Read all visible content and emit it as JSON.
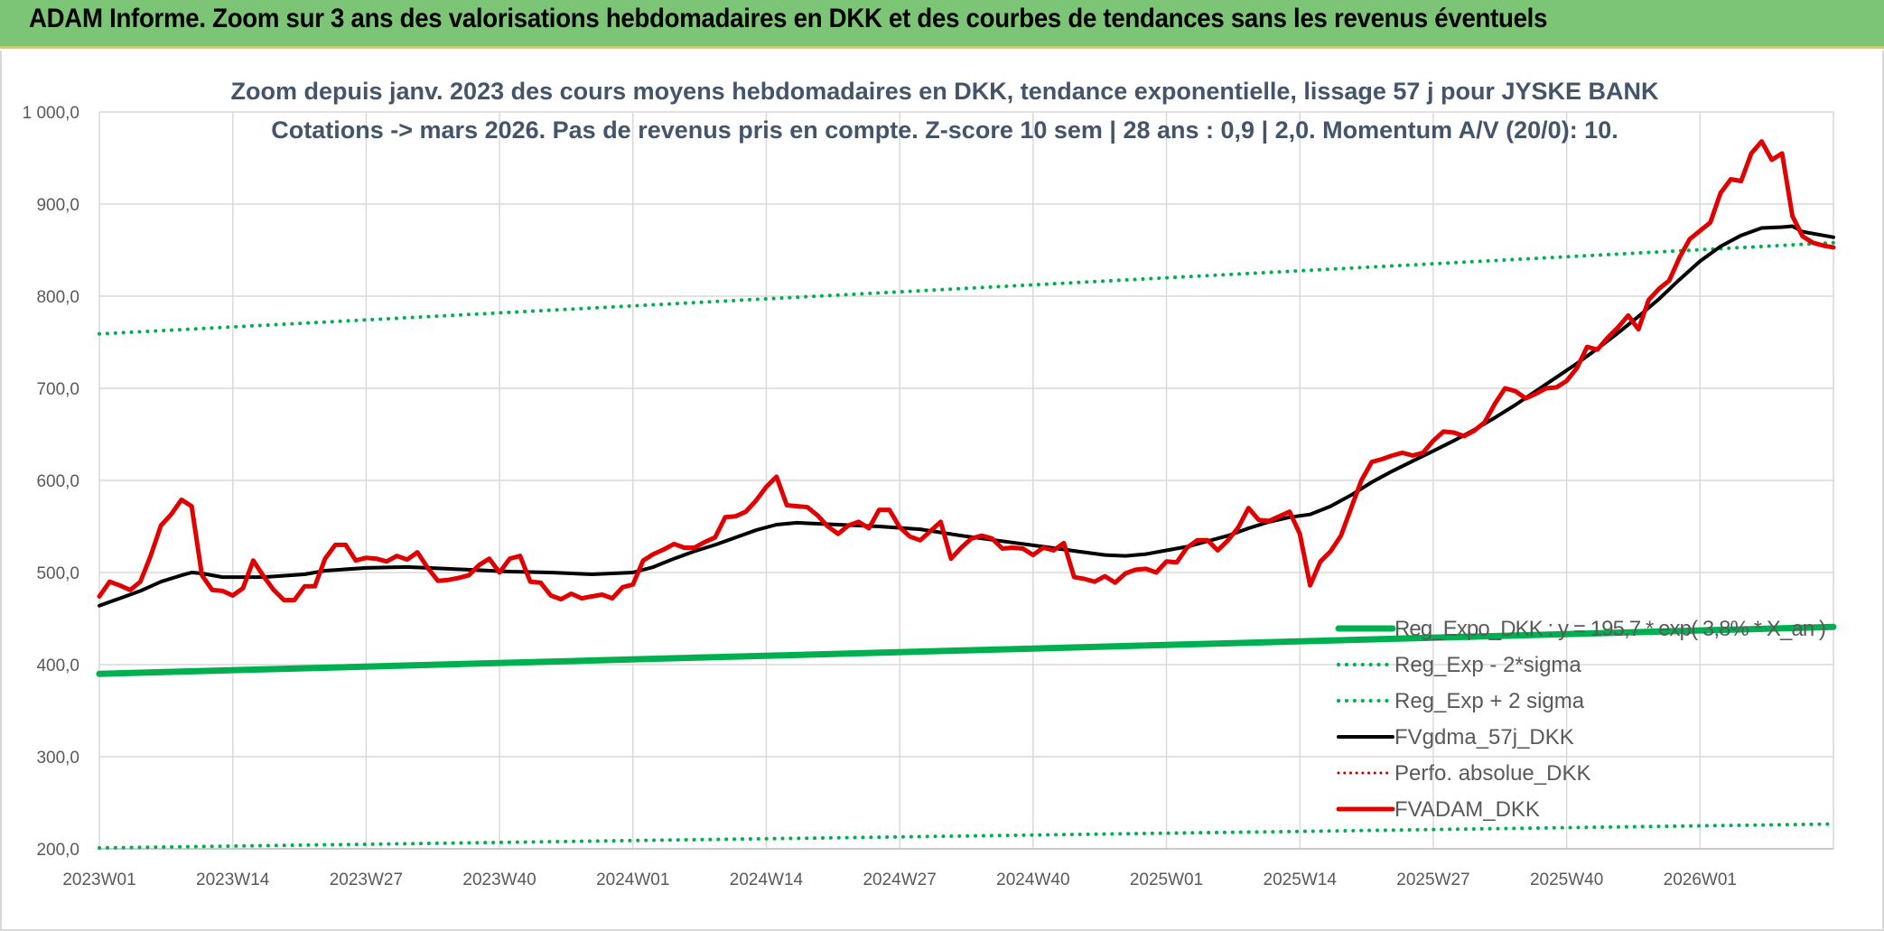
{
  "banner": {
    "title": "ADAM Informe. Zoom sur 3 ans des valorisations hebdomadaires en DKK et des courbes de tendances sans les revenus éventuels"
  },
  "chart_data": {
    "type": "line",
    "title_lines": [
      "Zoom depuis janv. 2023 des cours moyens hebdomadaires en DKK, tendance exponentielle, lissage 57 j pour JYSKE BANK",
      "Cotations -> mars 2026. Pas de revenus pris en compte. Z-score 10 sem | 28 ans : 0,9 | 2,0. Momentum A/V (20/0): 10."
    ],
    "ylim": [
      200,
      1000
    ],
    "yticks": [
      "200,0",
      "300,0",
      "400,0",
      "500,0",
      "600,0",
      "700,0",
      "800,0",
      "900,0",
      "1 000,0"
    ],
    "ytick_values": [
      200,
      300,
      400,
      500,
      600,
      700,
      800,
      900,
      1000
    ],
    "xticks": [
      {
        "label": "2023W01",
        "week": 0
      },
      {
        "label": "2023W14",
        "week": 13
      },
      {
        "label": "2023W27",
        "week": 26
      },
      {
        "label": "2023W40",
        "week": 39
      },
      {
        "label": "2024W01",
        "week": 52
      },
      {
        "label": "2024W14",
        "week": 65
      },
      {
        "label": "2024W27",
        "week": 78
      },
      {
        "label": "2024W40",
        "week": 91
      },
      {
        "label": "2025W01",
        "week": 104
      },
      {
        "label": "2025W14",
        "week": 117
      },
      {
        "label": "2025W27",
        "week": 130
      },
      {
        "label": "2025W40",
        "week": 143
      },
      {
        "label": "2026W01",
        "week": 156
      }
    ],
    "x_range_weeks": [
      0,
      169
    ],
    "grid": true,
    "legend_position": "bottom-right",
    "series": [
      {
        "name": "Reg_Expo_DKK : y = 195,7 * exp( 3,8% * X_an )",
        "style": "solid",
        "color": "#00b050",
        "width": 7,
        "points": [
          [
            0,
            390
          ],
          [
            169,
            441
          ]
        ]
      },
      {
        "name": "Reg_Exp - 2*sigma",
        "style": "dotted",
        "color": "#00b050",
        "width": 4,
        "points": [
          [
            0,
            201
          ],
          [
            169,
            227
          ]
        ]
      },
      {
        "name": "Reg_Exp + 2 sigma",
        "style": "dotted",
        "color": "#00b050",
        "width": 4,
        "points": [
          [
            0,
            759
          ],
          [
            169,
            858
          ]
        ]
      },
      {
        "name": "FVgdma_57j_DKK",
        "style": "solid",
        "color": "#000000",
        "width": 4,
        "points": [
          [
            0,
            464
          ],
          [
            2,
            472
          ],
          [
            4,
            480
          ],
          [
            6,
            490
          ],
          [
            8,
            497
          ],
          [
            9,
            500
          ],
          [
            10,
            499
          ],
          [
            12,
            495
          ],
          [
            16,
            495
          ],
          [
            20,
            498
          ],
          [
            22,
            502
          ],
          [
            26,
            505
          ],
          [
            30,
            506
          ],
          [
            34,
            504
          ],
          [
            40,
            501
          ],
          [
            44,
            500
          ],
          [
            48,
            498
          ],
          [
            50,
            499
          ],
          [
            52,
            500
          ],
          [
            54,
            506
          ],
          [
            56,
            515
          ],
          [
            58,
            523
          ],
          [
            60,
            530
          ],
          [
            62,
            538
          ],
          [
            64,
            546
          ],
          [
            66,
            552
          ],
          [
            68,
            554
          ],
          [
            72,
            552
          ],
          [
            76,
            550
          ],
          [
            80,
            547
          ],
          [
            84,
            540
          ],
          [
            88,
            534
          ],
          [
            92,
            528
          ],
          [
            96,
            522
          ],
          [
            98,
            519
          ],
          [
            100,
            518
          ],
          [
            102,
            520
          ],
          [
            104,
            524
          ],
          [
            106,
            528
          ],
          [
            108,
            534
          ],
          [
            110,
            540
          ],
          [
            112,
            548
          ],
          [
            114,
            555
          ],
          [
            116,
            560
          ],
          [
            118,
            563
          ],
          [
            120,
            572
          ],
          [
            122,
            584
          ],
          [
            124,
            598
          ],
          [
            126,
            610
          ],
          [
            128,
            621
          ],
          [
            130,
            632
          ],
          [
            132,
            643
          ],
          [
            134,
            655
          ],
          [
            136,
            668
          ],
          [
            138,
            682
          ],
          [
            140,
            697
          ],
          [
            142,
            712
          ],
          [
            144,
            727
          ],
          [
            146,
            743
          ],
          [
            148,
            760
          ],
          [
            150,
            778
          ],
          [
            152,
            797
          ],
          [
            154,
            818
          ],
          [
            156,
            838
          ],
          [
            158,
            854
          ],
          [
            160,
            866
          ],
          [
            162,
            874
          ],
          [
            164,
            875
          ],
          [
            165,
            876
          ],
          [
            166,
            870
          ],
          [
            168,
            866
          ],
          [
            169,
            864
          ]
        ]
      },
      {
        "name": "Perfo. absolue_DKK",
        "style": "dotted",
        "color": "#c00000",
        "width": 3,
        "points": []
      },
      {
        "name": "FVADAM_DKK",
        "style": "solid",
        "color": "#e00000",
        "width": 5,
        "points": [
          [
            0,
            474
          ],
          [
            1,
            490
          ],
          [
            2,
            486
          ],
          [
            3,
            481
          ],
          [
            4,
            490
          ],
          [
            5,
            518
          ],
          [
            6,
            551
          ],
          [
            7,
            563
          ],
          [
            8,
            579
          ],
          [
            9,
            572
          ],
          [
            10,
            497
          ],
          [
            11,
            481
          ],
          [
            12,
            480
          ],
          [
            13,
            475
          ],
          [
            14,
            483
          ],
          [
            15,
            513
          ],
          [
            16,
            496
          ],
          [
            17,
            481
          ],
          [
            18,
            470
          ],
          [
            19,
            470
          ],
          [
            20,
            485
          ],
          [
            21,
            485
          ],
          [
            22,
            515
          ],
          [
            23,
            530
          ],
          [
            24,
            530
          ],
          [
            25,
            513
          ],
          [
            26,
            516
          ],
          [
            27,
            515
          ],
          [
            28,
            512
          ],
          [
            29,
            518
          ],
          [
            30,
            514
          ],
          [
            31,
            522
          ],
          [
            32,
            505
          ],
          [
            33,
            491
          ],
          [
            34,
            492
          ],
          [
            35,
            494
          ],
          [
            36,
            497
          ],
          [
            37,
            508
          ],
          [
            38,
            515
          ],
          [
            39,
            500
          ],
          [
            40,
            515
          ],
          [
            41,
            518
          ],
          [
            42,
            490
          ],
          [
            43,
            489
          ],
          [
            44,
            475
          ],
          [
            45,
            471
          ],
          [
            46,
            477
          ],
          [
            47,
            472
          ],
          [
            48,
            474
          ],
          [
            49,
            476
          ],
          [
            50,
            472
          ],
          [
            51,
            484
          ],
          [
            52,
            487
          ],
          [
            53,
            513
          ],
          [
            54,
            520
          ],
          [
            55,
            525
          ],
          [
            56,
            531
          ],
          [
            57,
            527
          ],
          [
            58,
            527
          ],
          [
            59,
            533
          ],
          [
            60,
            538
          ],
          [
            61,
            560
          ],
          [
            62,
            561
          ],
          [
            63,
            566
          ],
          [
            64,
            578
          ],
          [
            65,
            593
          ],
          [
            66,
            604
          ],
          [
            67,
            573
          ],
          [
            68,
            572
          ],
          [
            69,
            571
          ],
          [
            70,
            562
          ],
          [
            71,
            550
          ],
          [
            72,
            542
          ],
          [
            73,
            551
          ],
          [
            74,
            555
          ],
          [
            75,
            548
          ],
          [
            76,
            568
          ],
          [
            77,
            568
          ],
          [
            78,
            549
          ],
          [
            79,
            539
          ],
          [
            80,
            535
          ],
          [
            81,
            545
          ],
          [
            82,
            555
          ],
          [
            83,
            515
          ],
          [
            84,
            527
          ],
          [
            85,
            537
          ],
          [
            86,
            540
          ],
          [
            87,
            537
          ],
          [
            88,
            526
          ],
          [
            89,
            527
          ],
          [
            90,
            526
          ],
          [
            91,
            519
          ],
          [
            92,
            527
          ],
          [
            93,
            524
          ],
          [
            94,
            532
          ],
          [
            95,
            495
          ],
          [
            96,
            493
          ],
          [
            97,
            490
          ],
          [
            98,
            496
          ],
          [
            99,
            489
          ],
          [
            100,
            499
          ],
          [
            101,
            503
          ],
          [
            102,
            504
          ],
          [
            103,
            500
          ],
          [
            104,
            512
          ],
          [
            105,
            511
          ],
          [
            106,
            527
          ],
          [
            107,
            535
          ],
          [
            108,
            535
          ],
          [
            109,
            524
          ],
          [
            110,
            535
          ],
          [
            111,
            549
          ],
          [
            112,
            570
          ],
          [
            113,
            557
          ],
          [
            114,
            556
          ],
          [
            115,
            561
          ],
          [
            116,
            566
          ],
          [
            117,
            542
          ],
          [
            118,
            486
          ],
          [
            119,
            512
          ],
          [
            120,
            523
          ],
          [
            121,
            540
          ],
          [
            122,
            570
          ],
          [
            123,
            600
          ],
          [
            124,
            620
          ],
          [
            125,
            623
          ],
          [
            126,
            627
          ],
          [
            127,
            630
          ],
          [
            128,
            627
          ],
          [
            129,
            630
          ],
          [
            130,
            643
          ],
          [
            131,
            653
          ],
          [
            132,
            652
          ],
          [
            133,
            648
          ],
          [
            134,
            654
          ],
          [
            135,
            663
          ],
          [
            136,
            683
          ],
          [
            137,
            700
          ],
          [
            138,
            697
          ],
          [
            139,
            689
          ],
          [
            140,
            694
          ],
          [
            141,
            700
          ],
          [
            142,
            701
          ],
          [
            143,
            708
          ],
          [
            144,
            722
          ],
          [
            145,
            745
          ],
          [
            146,
            742
          ],
          [
            147,
            755
          ],
          [
            148,
            766
          ],
          [
            149,
            779
          ],
          [
            150,
            764
          ],
          [
            151,
            796
          ],
          [
            152,
            808
          ],
          [
            153,
            817
          ],
          [
            154,
            842
          ],
          [
            155,
            862
          ],
          [
            156,
            871
          ],
          [
            157,
            880
          ],
          [
            158,
            912
          ],
          [
            159,
            927
          ],
          [
            160,
            925
          ],
          [
            161,
            955
          ],
          [
            162,
            968
          ],
          [
            163,
            948
          ],
          [
            164,
            955
          ],
          [
            165,
            887
          ],
          [
            166,
            865
          ],
          [
            167,
            858
          ],
          [
            168,
            855
          ],
          [
            169,
            853
          ]
        ]
      }
    ]
  }
}
